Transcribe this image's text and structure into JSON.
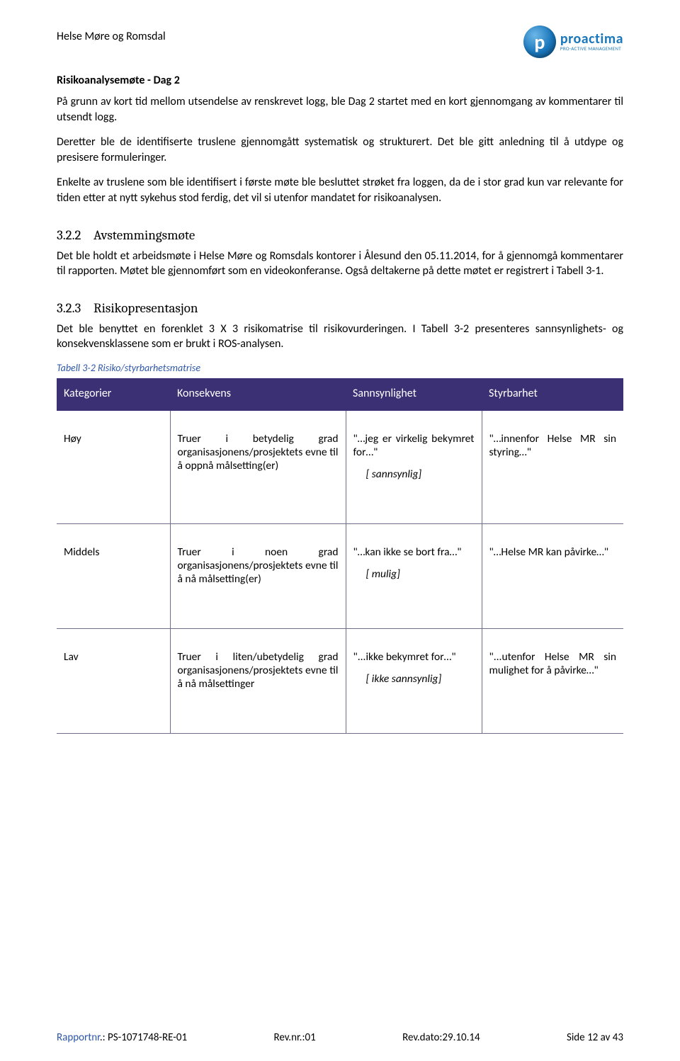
{
  "header": {
    "client": "Helse Møre og Romsdal",
    "logo": {
      "letter": "p",
      "brand": "proactima",
      "tagline": "PRO-ACTIVE MANAGEMENT"
    }
  },
  "subhead": "Risikoanalysemøte - Dag 2",
  "paragraphs": {
    "p1": "På grunn av kort tid mellom utsendelse av renskrevet logg, ble Dag 2 startet med en kort gjennomgang av kommentarer til utsendt logg.",
    "p2": "Deretter ble de identifiserte truslene gjennomgått systematisk og strukturert. Det ble gitt anledning til å utdype og presisere formuleringer.",
    "p3": "Enkelte av truslene som ble identifisert i første møte ble besluttet strøket fra loggen, da de i stor grad kun var relevante for tiden etter at nytt sykehus stod ferdig, det vil si utenfor mandatet for risikoanalysen."
  },
  "sec322": {
    "num": "3.2.2",
    "title": "Avstemmingsmøte",
    "body": "Det ble holdt et arbeidsmøte i Helse Møre og Romsdals kontorer i Ålesund den 05.11.2014, for å gjennomgå kommentarer til rapporten. Møtet ble gjennomført som en videokonferanse. Også deltakerne på dette møtet er registrert i Tabell 3-1."
  },
  "sec323": {
    "num": "3.2.3",
    "title": "Risikopresentasjon",
    "body": "Det ble benyttet en forenklet 3 X 3 risikomatrise til risikovurderingen. I Tabell 3-2 presenteres sannsynlighets- og konsekvensklassene som er brukt i ROS-analysen."
  },
  "table": {
    "caption": "Tabell 3-2 Risiko/styrbarhetsmatrise",
    "headers": [
      "Kategorier",
      "Konsekvens",
      "Sannsynlighet",
      "Styrbarhet"
    ],
    "rows": [
      {
        "cat": "Høy",
        "kons": "Truer i betydelig grad organisasjonens/prosjektets evne til å oppnå målsetting(er)",
        "sann_main": "\"…jeg er virkelig bekymret for…\"",
        "sann_note": "[ sannsynlig]",
        "styr": "\"…innenfor Helse MR sin styring…\""
      },
      {
        "cat": "Middels",
        "kons": "Truer i noen grad organisasjonens/prosjektets evne til å nå målsetting(er)",
        "sann_main": "\"…kan ikke se bort fra…\"",
        "sann_note": "[ mulig]",
        "styr": "\"…Helse MR kan påvirke…\""
      },
      {
        "cat": "Lav",
        "kons": "Truer i liten/ubetydelig grad organisasjonens/prosjektets evne til å nå målsettinger",
        "sann_main": "\"...ikke bekymret for…\"",
        "sann_note": "[ ikke sannsynlig]",
        "styr": "\"...utenfor Helse MR sin mulighet for å påvirke…\""
      }
    ],
    "header_bg": "#3c3075",
    "header_fg": "#ffffff",
    "border_color": "#6e6e8a"
  },
  "footer": {
    "report_label": "Rapportnr",
    "report_value": ".:   PS-1071748-RE-01",
    "rev_label": "Rev.nr.:",
    "rev_value": "01",
    "date_label": "Rev.dato:",
    "date_value": "29.10.14",
    "page_label": "Side",
    "page_value": "12 av 43"
  }
}
